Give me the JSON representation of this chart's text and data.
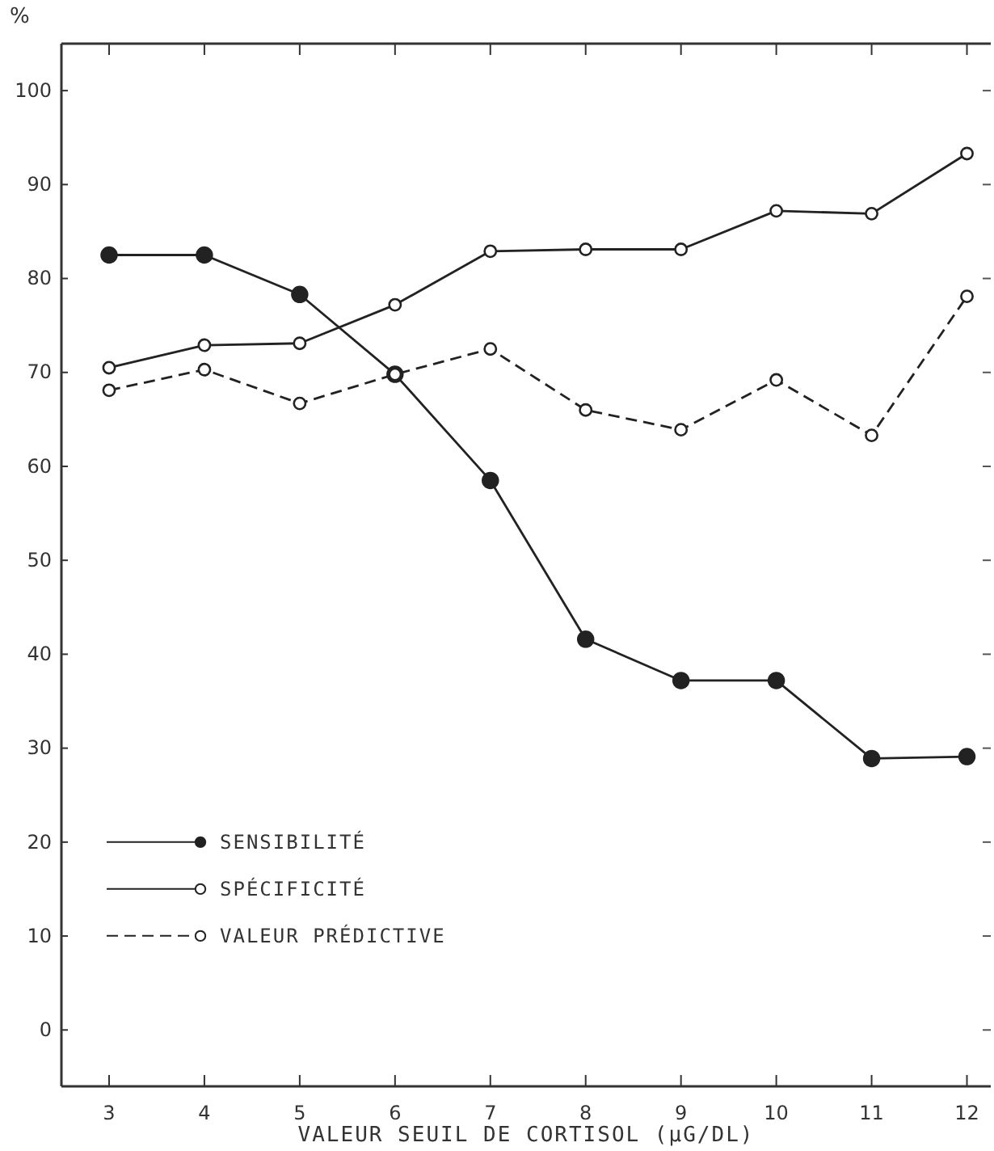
{
  "chart_data": {
    "type": "line",
    "ylabel": "%",
    "xlabel": "VALEUR SEUIL DE CORTISOL (µG/DL)",
    "x": [
      3,
      4,
      5,
      6,
      7,
      8,
      9,
      10,
      11,
      12
    ],
    "series": [
      {
        "name": "SENSIBILITÉ",
        "color": "#222222",
        "line_style": "solid",
        "values": [
          82.5,
          82.5,
          78.3,
          69.8,
          58.5,
          41.6,
          37.2,
          37.2,
          28.9,
          29.1
        ]
      },
      {
        "name": "SPÉCIFICITÉ",
        "color": "#222222",
        "line_style": "solid",
        "values": [
          70.5,
          72.9,
          73.1,
          77.2,
          82.9,
          83.1,
          83.1,
          87.2,
          86.9,
          93.3
        ]
      },
      {
        "name": "VALEUR PRÉDICTIVE",
        "color": "#222222",
        "line_style": "dashed",
        "values": [
          68.1,
          70.3,
          66.7,
          69.8,
          72.5,
          66,
          63.9,
          69.2,
          63.3,
          78.1
        ]
      }
    ],
    "xlim": [
      2.5,
      12.25
    ],
    "xticks": [
      3,
      4,
      5,
      6,
      7,
      8,
      9,
      10,
      11,
      12
    ],
    "ylim": [
      -6,
      105
    ],
    "yticks": [
      0,
      10,
      20,
      30,
      40,
      50,
      60,
      70,
      80,
      90,
      100
    ],
    "marker": "circle",
    "legend": "bottom left",
    "grid": false
  }
}
